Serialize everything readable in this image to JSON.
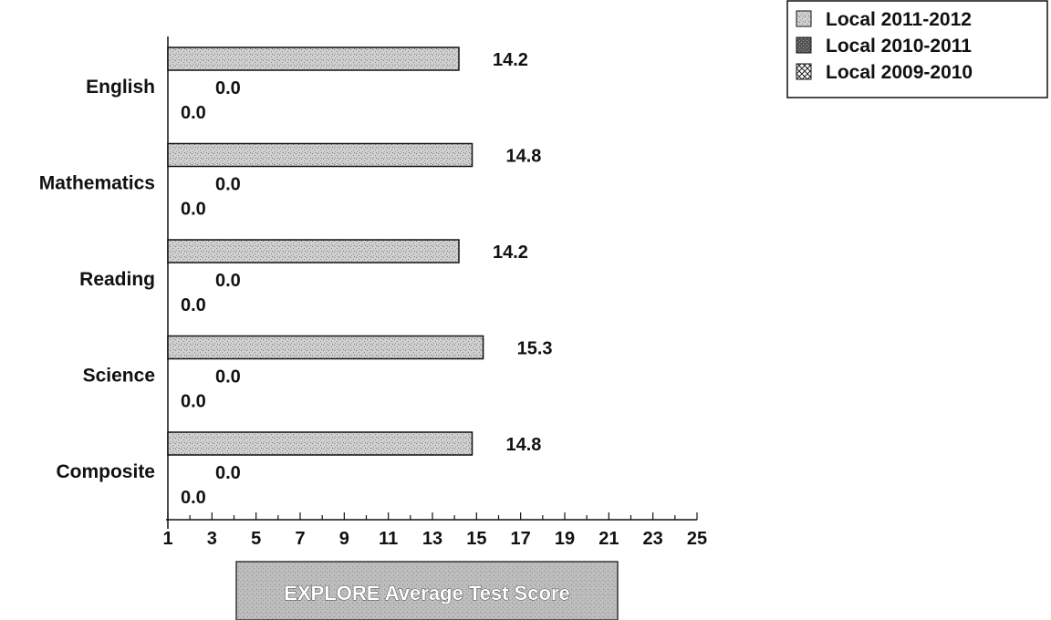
{
  "chart_data": {
    "type": "bar",
    "orientation": "horizontal",
    "title": "EXPLORE Average Test Score",
    "categories": [
      "English",
      "Mathematics",
      "Reading",
      "Science",
      "Composite"
    ],
    "series": [
      {
        "name": "Local 2011-2012",
        "values": [
          14.2,
          14.8,
          14.2,
          15.3,
          14.8
        ],
        "pattern": "light-stipple"
      },
      {
        "name": "Local 2010-2011",
        "values": [
          0.0,
          0.0,
          0.0,
          0.0,
          0.0
        ],
        "pattern": "dark-stipple"
      },
      {
        "name": "Local 2009-2010",
        "values": [
          0.0,
          0.0,
          0.0,
          0.0,
          0.0
        ],
        "pattern": "crosshatch"
      }
    ],
    "data_labels": [
      [
        "14.2",
        "14.8",
        "14.2",
        "15.3",
        "14.8"
      ],
      [
        "0.0",
        "0.0",
        "0.0",
        "0.0",
        "0.0"
      ],
      [
        "0.0",
        "0.0",
        "0.0",
        "0.0",
        "0.0"
      ]
    ],
    "xlim": [
      1,
      25
    ],
    "x_ticks": [
      "1",
      "3",
      "5",
      "7",
      "9",
      "11",
      "13",
      "15",
      "17",
      "19",
      "21",
      "23",
      "25"
    ],
    "legend_position": "top-right",
    "grid": false,
    "colors": {
      "bar_fill": "#c8c8c8",
      "bar_stroke": "#111111",
      "title_box": "#bdbdbd"
    }
  }
}
